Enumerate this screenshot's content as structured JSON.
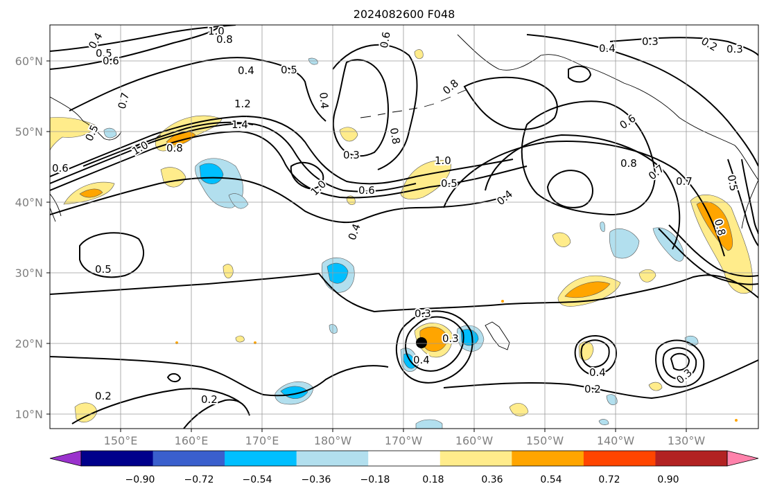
{
  "title": "2024082600 F048",
  "map": {
    "lon_labels": [
      "150°E",
      "160°E",
      "170°E",
      "180°W",
      "170°W",
      "160°W",
      "150°W",
      "140°W",
      "130°W"
    ],
    "lat_labels": [
      "60°N",
      "50°N",
      "40°N",
      "30°N",
      "20°N",
      "10°N"
    ],
    "label_color": "#7f7f7f",
    "grid_color": "#9a9a9a",
    "contour_labels": [
      "1.0",
      "0.8",
      "0.4",
      "0.5",
      "0.6",
      "0.6",
      "0.5",
      "0.7",
      "0.4",
      "1.2",
      "1.4",
      "1.0",
      "0.8",
      "0.6",
      "0.4",
      "0.3",
      "0.8",
      "1.0",
      "0.5",
      "0.6",
      "1.0",
      "0.4",
      "0.8",
      "0.6",
      "0.8",
      "0.7",
      "0.7",
      "0.4",
      "0.3",
      "0.2",
      "0.3",
      "0.8",
      "0.5",
      "0.4",
      "0.5",
      "0.3",
      "0.3",
      "0.4",
      "0.4",
      "0.2",
      "0.2",
      "0.2",
      "0.3"
    ]
  },
  "colorbar": {
    "tick_labels": [
      "−0.90",
      "−0.72",
      "−0.54",
      "−0.36",
      "−0.18",
      "0.18",
      "0.36",
      "0.54",
      "0.72",
      "0.90"
    ],
    "colors": [
      "#9a32cd",
      "#00008b",
      "#3a5fcd",
      "#00bfff",
      "#b2dfee",
      "#ffffff",
      "#ffec8b",
      "#ffa500",
      "#ff4500",
      "#b22222",
      "#ff82ab"
    ]
  }
}
